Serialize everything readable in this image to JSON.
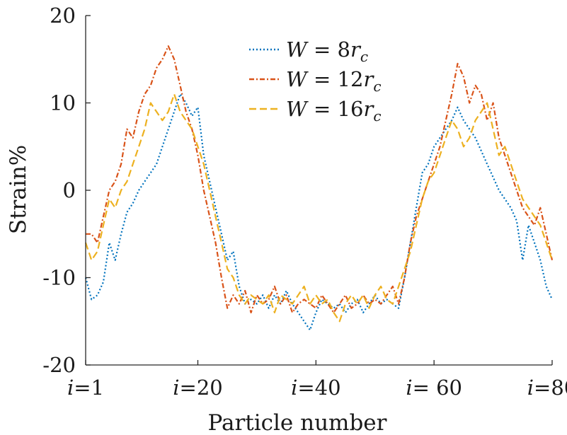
{
  "chart_data": {
    "type": "line",
    "title": "",
    "xlabel": "Particle number",
    "ylabel": "Strain%",
    "xlim": [
      1,
      80
    ],
    "ylim": [
      -20,
      20
    ],
    "grid": false,
    "legend_position": "top-center",
    "y_ticks": [
      {
        "value": 20,
        "label": "20"
      },
      {
        "value": 10,
        "label": "10"
      },
      {
        "value": 0,
        "label": "0"
      },
      {
        "value": -10,
        "label": "-10"
      },
      {
        "value": -20,
        "label": "-20"
      }
    ],
    "x_ticks": [
      {
        "value": 1,
        "prefix": "i",
        "label": "=1"
      },
      {
        "value": 20,
        "prefix": "i",
        "label": "=20"
      },
      {
        "value": 40,
        "prefix": "i",
        "label": "=40"
      },
      {
        "value": 60,
        "prefix": "i",
        "label": "= 60"
      },
      {
        "value": 80,
        "prefix": "i",
        "label": "=80"
      }
    ],
    "x": [
      1,
      2,
      3,
      4,
      5,
      6,
      7,
      8,
      9,
      10,
      11,
      12,
      13,
      14,
      15,
      16,
      17,
      18,
      19,
      20,
      21,
      22,
      23,
      24,
      25,
      26,
      27,
      28,
      29,
      30,
      31,
      32,
      33,
      34,
      35,
      36,
      37,
      38,
      39,
      40,
      41,
      42,
      43,
      44,
      45,
      46,
      47,
      48,
      49,
      50,
      51,
      52,
      53,
      54,
      55,
      56,
      57,
      58,
      59,
      60,
      61,
      62,
      63,
      64,
      65,
      66,
      67,
      68,
      69,
      70,
      71,
      72,
      73,
      74,
      75,
      76,
      77,
      78,
      79,
      80
    ],
    "series": [
      {
        "name": "W = 8r_c",
        "legend_var": "W",
        "legend_eq": "= 8",
        "legend_r": "r",
        "legend_sub": "c",
        "color": "#0072BD",
        "dash": "2 3",
        "values": [
          -10,
          -12.5,
          -12,
          -10.5,
          -6,
          -8,
          -5,
          -2.5,
          -1.5,
          0,
          1,
          2,
          3,
          5,
          7,
          9,
          11,
          10,
          8.5,
          9.5,
          4,
          1,
          -2,
          -5,
          -8,
          -7,
          -11,
          -13,
          -12.5,
          -13,
          -12,
          -13.5,
          -12,
          -13,
          -11.5,
          -13,
          -14,
          -15,
          -16,
          -14,
          -12.5,
          -13,
          -13.5,
          -13,
          -14,
          -13,
          -12.5,
          -14,
          -13,
          -12,
          -13,
          -12.5,
          -13,
          -13.5,
          -10,
          -6,
          -2,
          2,
          3,
          5,
          6,
          7,
          8,
          9.5,
          8,
          7,
          6,
          4.5,
          3,
          1.5,
          0,
          -1,
          -2,
          -3.5,
          -8,
          -4,
          -6,
          -8,
          -11,
          -12.5
        ]
      },
      {
        "name": "W = 12r_c",
        "legend_var": "W",
        "legend_eq": "= 12",
        "legend_r": "r",
        "legend_sub": "c",
        "color": "#D95319",
        "dash": "7 3 2 3",
        "values": [
          -5,
          -5,
          -6,
          -3,
          0,
          1,
          3,
          7,
          6,
          9,
          11,
          12,
          14,
          15,
          16.5,
          15,
          12,
          9,
          7,
          4,
          0,
          -3,
          -6,
          -10,
          -13.5,
          -12,
          -13,
          -11.5,
          -14,
          -12,
          -13,
          -12.5,
          -11,
          -13,
          -12,
          -14,
          -13,
          -12.5,
          -13,
          -13.5,
          -12,
          -13,
          -14,
          -13,
          -12,
          -13.5,
          -13,
          -12,
          -13,
          -12.5,
          -13,
          -12,
          -11,
          -13,
          -10,
          -6,
          -3,
          -1,
          1,
          3,
          5,
          8,
          11,
          14.5,
          13,
          10,
          12,
          11,
          8,
          10,
          6,
          4,
          2,
          0,
          -2,
          -3,
          -4,
          -2,
          -5,
          -8
        ]
      },
      {
        "name": "W = 16r_c",
        "legend_var": "W",
        "legend_eq": "= 16",
        "legend_r": "r",
        "legend_sub": "c",
        "color": "#EDB120",
        "dash": "10 5",
        "values": [
          -6,
          -8,
          -7,
          -4,
          -1,
          -2,
          0,
          1,
          3,
          5,
          7,
          10,
          9,
          8,
          9,
          11,
          9,
          8,
          7,
          5,
          3,
          0,
          -3,
          -6,
          -9,
          -10,
          -12,
          -13,
          -12,
          -12.5,
          -13,
          -12,
          -14,
          -12,
          -12.5,
          -13,
          -12,
          -11,
          -13,
          -12,
          -13,
          -12.5,
          -14,
          -15,
          -13,
          -12,
          -13,
          -12,
          -13.5,
          -12,
          -11,
          -12.5,
          -13,
          -11,
          -9,
          -7,
          -4,
          -1,
          1,
          2,
          4,
          6,
          8,
          7,
          5,
          6,
          8,
          9,
          10,
          7,
          4,
          5,
          3,
          1,
          -1,
          -2,
          -3,
          -4,
          -6,
          -8
        ]
      }
    ]
  }
}
